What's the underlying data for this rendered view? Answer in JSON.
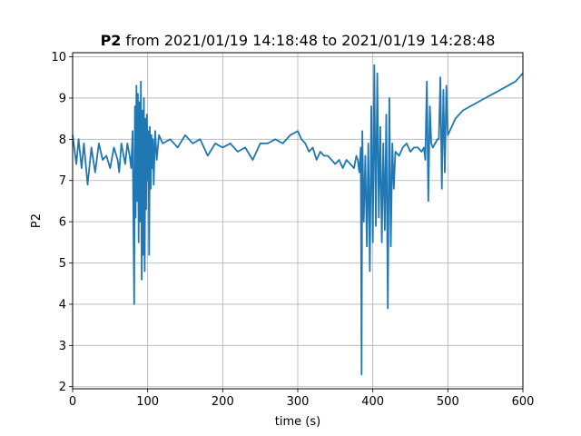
{
  "chart_data": {
    "type": "line",
    "title_bold": "P2",
    "title_rest": " from 2021/01/19 14:18:48 to 2021/01/19 14:28:48",
    "xlabel": "time (s)",
    "ylabel": "P2",
    "xlim": [
      0,
      600
    ],
    "ylim": [
      1.95,
      10.1
    ],
    "grid": true,
    "color": "#1f77b4",
    "x_ticks": [
      0,
      100,
      200,
      300,
      400,
      500,
      600
    ],
    "y_ticks": [
      2,
      3,
      4,
      5,
      6,
      7,
      8,
      9,
      10
    ],
    "series": [
      {
        "name": "",
        "x": [
          0,
          5,
          8,
          12,
          15,
          20,
          25,
          30,
          35,
          40,
          45,
          50,
          55,
          60,
          62,
          65,
          70,
          73,
          76,
          78,
          80,
          81,
          82,
          83,
          84,
          85,
          86,
          87,
          88,
          89,
          90,
          91,
          92,
          93,
          94,
          95,
          96,
          97,
          98,
          99,
          100,
          101,
          102,
          103,
          104,
          105,
          106,
          107,
          108,
          110,
          112,
          115,
          120,
          130,
          140,
          150,
          160,
          170,
          180,
          190,
          200,
          210,
          220,
          230,
          240,
          250,
          260,
          270,
          280,
          290,
          300,
          305,
          310,
          315,
          320,
          325,
          330,
          335,
          340,
          345,
          350,
          355,
          360,
          365,
          370,
          375,
          378,
          380,
          382,
          384,
          385,
          386,
          388,
          390,
          392,
          394,
          396,
          398,
          400,
          402,
          404,
          406,
          408,
          410,
          412,
          414,
          416,
          418,
          420,
          422,
          424,
          426,
          428,
          430,
          435,
          440,
          445,
          450,
          455,
          460,
          465,
          468,
          470,
          472,
          474,
          476,
          478,
          480,
          483,
          486,
          488,
          490,
          492,
          494,
          496,
          498,
          500,
          505,
          510,
          520,
          530,
          540,
          550,
          560,
          570,
          580,
          590,
          595,
          600
        ],
        "values": [
          8.1,
          7.4,
          8.0,
          7.3,
          7.9,
          6.9,
          7.8,
          7.2,
          7.9,
          7.5,
          7.6,
          7.3,
          7.8,
          7.5,
          7.2,
          7.9,
          7.4,
          7.9,
          7.6,
          7.3,
          8.2,
          5.9,
          4.0,
          8.8,
          6.1,
          9.3,
          6.5,
          9.1,
          5.5,
          8.9,
          6.0,
          9.4,
          4.6,
          8.7,
          5.2,
          9.0,
          4.8,
          8.5,
          6.3,
          8.6,
          7.0,
          8.2,
          5.2,
          8.3,
          6.8,
          8.1,
          7.3,
          8.0,
          6.9,
          8.2,
          7.5,
          8.1,
          7.9,
          8.0,
          7.8,
          8.1,
          7.9,
          8.0,
          7.6,
          7.9,
          7.8,
          7.9,
          7.7,
          7.8,
          7.5,
          7.9,
          7.9,
          8.0,
          7.9,
          8.1,
          8.2,
          8.0,
          7.9,
          7.7,
          7.8,
          7.5,
          7.7,
          7.6,
          7.6,
          7.5,
          7.4,
          7.5,
          7.3,
          7.5,
          7.4,
          7.3,
          7.6,
          7.5,
          7.2,
          7.8,
          2.3,
          8.2,
          6.0,
          7.6,
          5.4,
          7.9,
          4.8,
          8.8,
          5.5,
          9.8,
          5.9,
          9.6,
          6.1,
          8.3,
          5.5,
          7.9,
          5.8,
          8.6,
          3.9,
          9.0,
          5.4,
          7.9,
          6.8,
          7.7,
          7.6,
          7.8,
          7.9,
          7.7,
          7.8,
          7.8,
          7.7,
          7.8,
          7.5,
          9.4,
          6.5,
          8.8,
          7.9,
          7.8,
          7.9,
          8.0,
          8.0,
          9.5,
          6.8,
          9.2,
          7.2,
          9.3,
          8.1,
          8.3,
          8.5,
          8.7,
          8.8,
          8.9,
          9.0,
          9.1,
          9.2,
          9.3,
          9.4,
          9.5,
          9.6
        ]
      }
    ]
  }
}
